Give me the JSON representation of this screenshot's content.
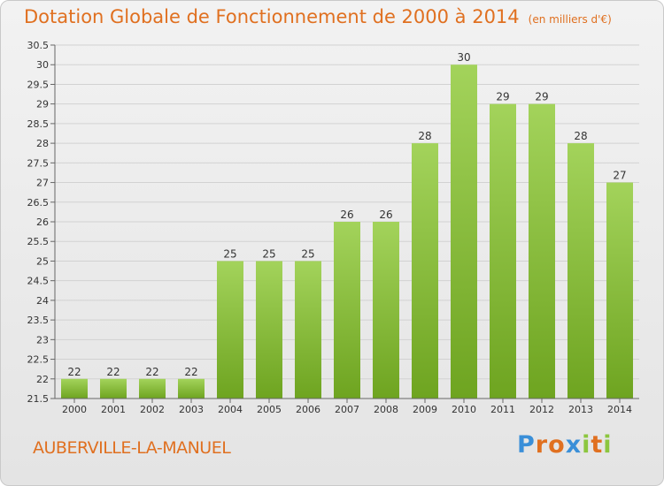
{
  "header": {
    "title": "Dotation Globale de Fonctionnement de 2000 à 2014",
    "unit": "(en milliers d'€)"
  },
  "footer": {
    "commune": "AUBERVILLE-LA-MANUEL",
    "logo": "Proxiti"
  },
  "colors": {
    "bar_top": "#a3d35b",
    "bar_bottom": "#6ea420",
    "title": "#e07020"
  },
  "chart_data": {
    "type": "bar",
    "title": "Dotation Globale de Fonctionnement de 2000 à 2014",
    "subtitle": "(en milliers d'€)",
    "xlabel": "",
    "ylabel": "",
    "categories": [
      "2000",
      "2001",
      "2002",
      "2003",
      "2004",
      "2005",
      "2006",
      "2007",
      "2008",
      "2009",
      "2010",
      "2011",
      "2012",
      "2013",
      "2014"
    ],
    "values": [
      22,
      22,
      22,
      22,
      25,
      25,
      25,
      26,
      26,
      28,
      30,
      29,
      29,
      28,
      27
    ],
    "ylim": [
      21.5,
      30.5
    ],
    "yticks": [
      21.5,
      22,
      22.5,
      23,
      23.5,
      24,
      24.5,
      25,
      25.5,
      26,
      26.5,
      27,
      27.5,
      28,
      28.5,
      29,
      29.5,
      30,
      30.5
    ],
    "grid": true,
    "legend": "none"
  }
}
